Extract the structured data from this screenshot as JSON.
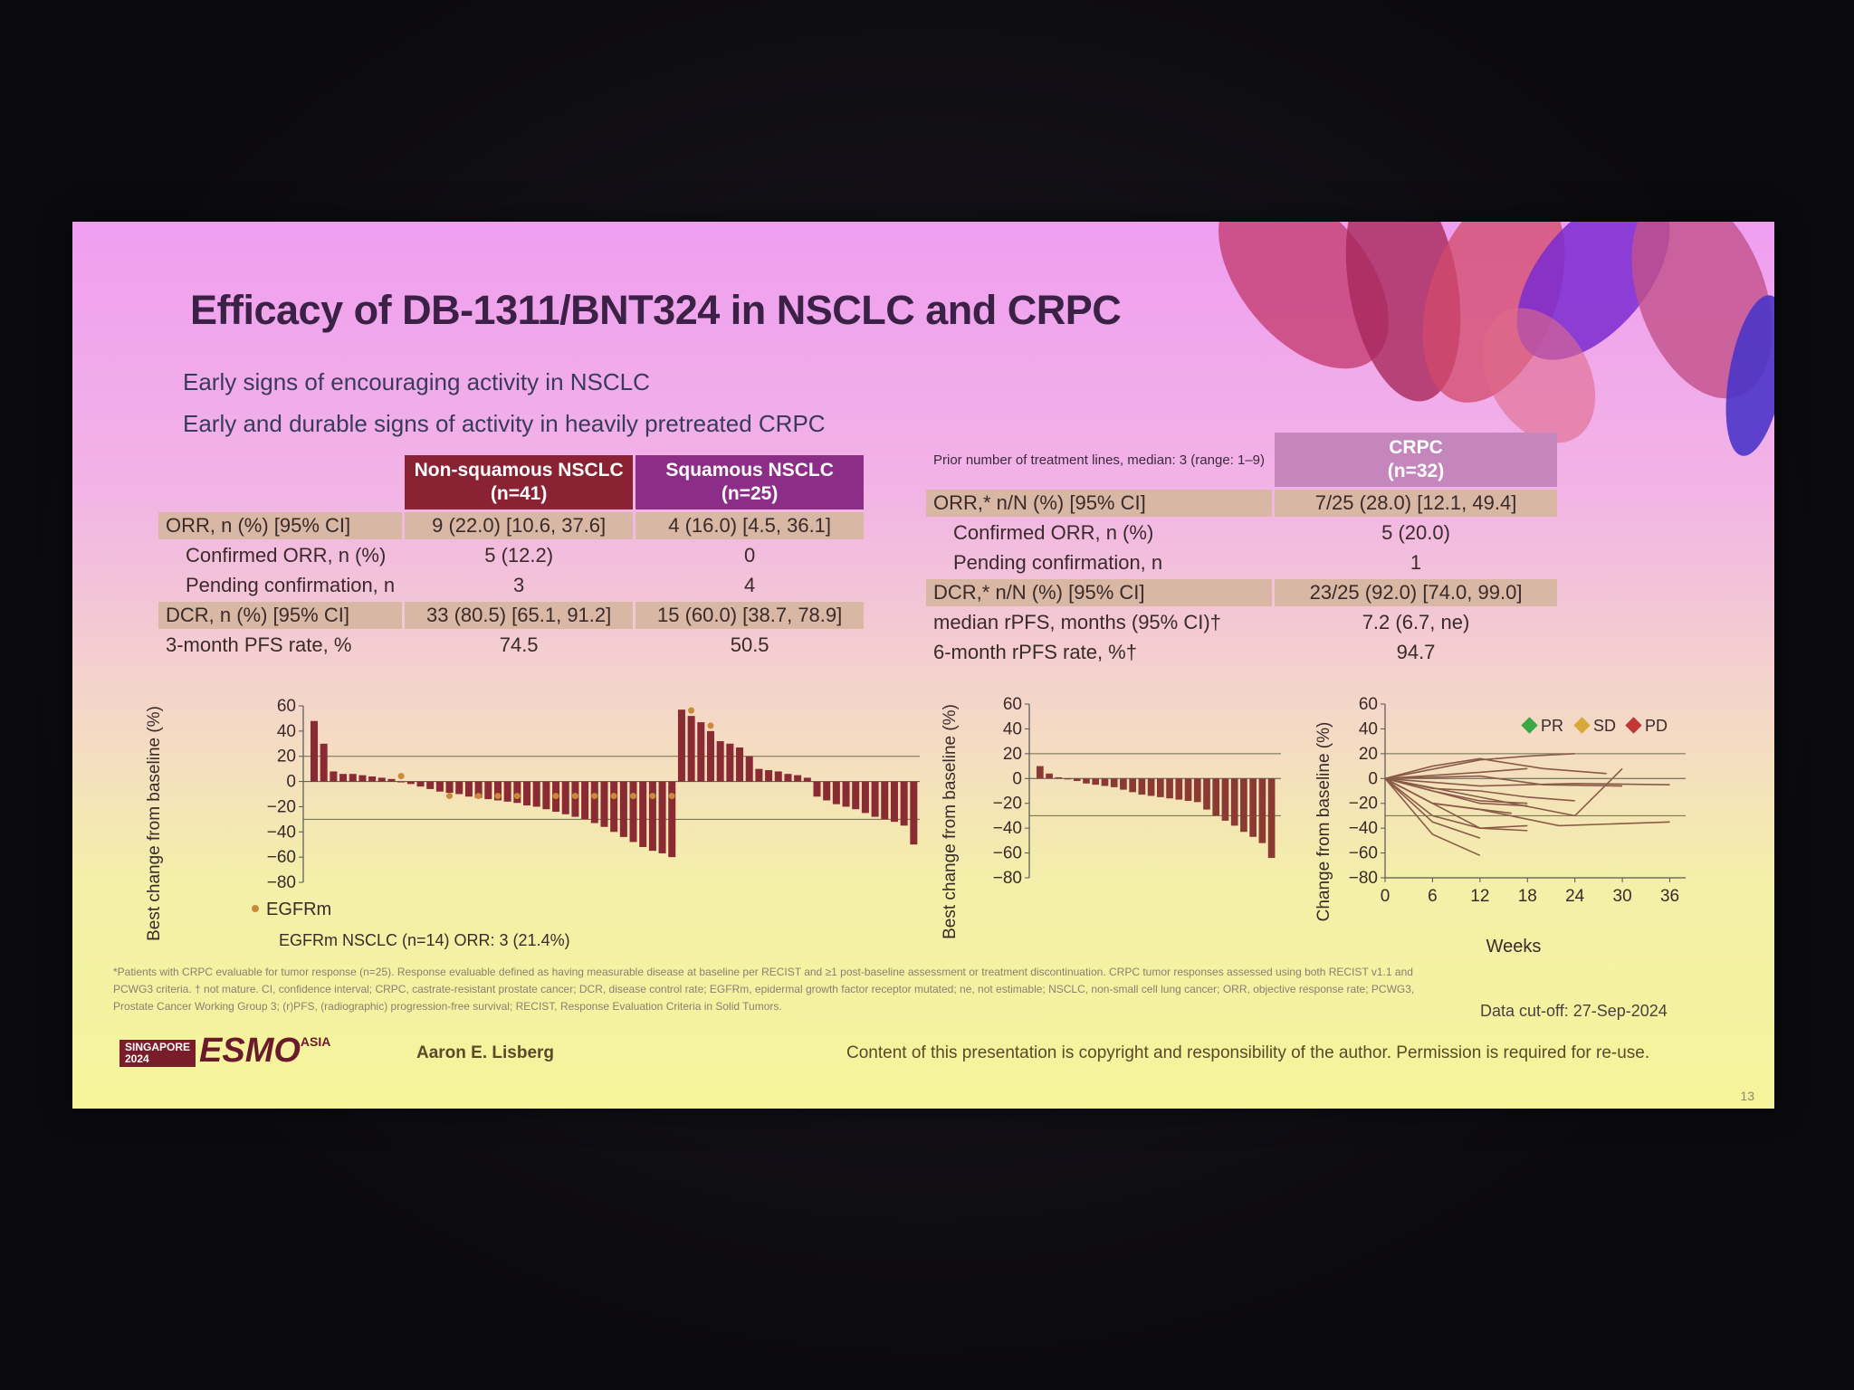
{
  "title": "Efficacy of DB-1311/BNT324 in NSCLC and CRPC",
  "bullets": [
    "Early signs of encouraging activity in NSCLC",
    "Early and durable signs of activity in heavily pretreated CRPC"
  ],
  "left_table": {
    "headers": [
      "Non-squamous NSCLC",
      "(n=41)",
      "Squamous NSCLC",
      "(n=25)"
    ],
    "rows": [
      {
        "label": "ORR, n (%) [95% CI]",
        "ns": "9 (22.0) [10.6, 37.6]",
        "sq": "4 (16.0) [4.5, 36.1]"
      },
      {
        "label": "Confirmed ORR, n (%)",
        "ns": "5 (12.2)",
        "sq": "0"
      },
      {
        "label": "Pending confirmation, n",
        "ns": "3",
        "sq": "4"
      },
      {
        "label": "DCR, n (%) [95% CI]",
        "ns": "33 (80.5) [65.1, 91.2]",
        "sq": "15 (60.0) [38.7, 78.9]"
      },
      {
        "label": "3-month PFS rate, %",
        "ns": "74.5",
        "sq": "50.5"
      }
    ]
  },
  "right_table": {
    "prior_lines": "Prior number of treatment lines, median: 3 (range: 1–9)",
    "headers": [
      "CRPC",
      "(n=32)"
    ],
    "rows": [
      {
        "label": "ORR,* n/N (%) [95% CI]",
        "val": "7/25 (28.0) [12.1, 49.4]"
      },
      {
        "label": "Confirmed ORR, n (%)",
        "val": "5 (20.0)"
      },
      {
        "label": "Pending confirmation, n",
        "val": "1"
      },
      {
        "label": "DCR,* n/N (%) [95% CI]",
        "val": "23/25 (92.0) [74.0, 99.0]"
      },
      {
        "label": "median rPFS, months (95% CI)†",
        "val": "7.2 (6.7, ne)"
      },
      {
        "label": "6-month rPFS rate, %†",
        "val": "94.7"
      }
    ]
  },
  "nsclc_chart": {
    "ylabel": "Best change from baseline (%)",
    "legend": "EGFRm",
    "caption": "EGFRm NSCLC (n=14) ORR: 3 (21.4%)"
  },
  "crpc_chart": {
    "ylabel": "Best change from baseline (%)"
  },
  "spider_chart": {
    "ylabel": "Change from baseline (%)",
    "xlabel": "Weeks",
    "legend": [
      "PR",
      "SD",
      "PD"
    ]
  },
  "chart_data": [
    {
      "type": "bar",
      "name_hint": "NSCLC waterfall",
      "ylim": [
        -80,
        60
      ],
      "yticks": [
        "60",
        "40",
        "20",
        "0",
        "−20",
        "−40",
        "−60",
        "−80"
      ],
      "reference_lines": [
        20,
        -30
      ],
      "values": [
        48,
        30,
        8,
        6,
        6,
        5,
        4,
        3,
        2,
        0,
        -2,
        -4,
        -6,
        -8,
        -9,
        -10,
        -12,
        -13,
        -14,
        -15,
        -16,
        -17,
        -19,
        -20,
        -22,
        -24,
        -26,
        -28,
        -30,
        -33,
        -36,
        -40,
        -44,
        -48,
        -52,
        -55,
        -57,
        -60,
        57,
        52,
        47,
        40,
        32,
        30,
        27,
        20,
        10,
        9,
        8,
        6,
        5,
        3,
        -12,
        -15,
        -18,
        -20,
        -22,
        -25,
        -28,
        -30,
        -32,
        -35,
        -50
      ],
      "egfrm_markers": [
        9,
        14,
        17,
        19,
        21,
        25,
        27,
        29,
        31,
        33,
        35,
        37,
        39,
        41
      ]
    },
    {
      "type": "bar",
      "name_hint": "CRPC waterfall",
      "ylim": [
        -80,
        60
      ],
      "yticks": [
        "60",
        "40",
        "20",
        "0",
        "−20",
        "−40",
        "−60",
        "−80"
      ],
      "reference_lines": [
        20,
        -30
      ],
      "values": [
        10,
        4,
        1,
        0,
        -2,
        -4,
        -5,
        -6,
        -7,
        -9,
        -11,
        -13,
        -14,
        -15,
        -16,
        -17,
        -18,
        -19,
        -25,
        -30,
        -34,
        -38,
        -43,
        -47,
        -52,
        -64
      ]
    },
    {
      "type": "line",
      "name_hint": "CRPC spider plot",
      "ylim": [
        -80,
        60
      ],
      "xlim": [
        0,
        38
      ],
      "yticks": [
        "60",
        "40",
        "20",
        "0",
        "−20",
        "−40",
        "−60",
        "−80"
      ],
      "xticks": [
        "0",
        "6",
        "12",
        "18",
        "24",
        "30",
        "36"
      ],
      "reference_lines": [
        20,
        -30
      ],
      "series": [
        {
          "x": [
            0,
            12,
            18,
            24
          ],
          "y": [
            0,
            15,
            18,
            20
          ]
        },
        {
          "x": [
            0,
            6,
            12,
            20,
            28
          ],
          "y": [
            0,
            10,
            16,
            8,
            4
          ]
        },
        {
          "x": [
            0,
            12,
            18
          ],
          "y": [
            0,
            5,
            8
          ]
        },
        {
          "x": [
            0,
            12,
            20,
            30
          ],
          "y": [
            0,
            2,
            -5,
            -6
          ]
        },
        {
          "x": [
            0,
            6,
            12,
            18,
            24
          ],
          "y": [
            0,
            -8,
            -10,
            -15,
            -18
          ]
        },
        {
          "x": [
            0,
            12,
            24,
            30
          ],
          "y": [
            0,
            -15,
            -30,
            8
          ]
        },
        {
          "x": [
            0,
            6,
            12,
            22,
            36
          ],
          "y": [
            0,
            -20,
            -25,
            -38,
            -35
          ]
        },
        {
          "x": [
            0,
            6,
            12,
            18
          ],
          "y": [
            0,
            -30,
            -40,
            -38
          ]
        },
        {
          "x": [
            0,
            6,
            12,
            18
          ],
          "y": [
            0,
            -20,
            -40,
            -42
          ]
        },
        {
          "x": [
            0,
            6,
            12
          ],
          "y": [
            0,
            -35,
            -48
          ]
        },
        {
          "x": [
            0,
            6,
            12
          ],
          "y": [
            0,
            -45,
            -62
          ]
        },
        {
          "x": [
            0,
            6,
            16
          ],
          "y": [
            0,
            -20,
            -28
          ]
        },
        {
          "x": [
            0,
            12,
            18
          ],
          "y": [
            0,
            -20,
            -22
          ]
        },
        {
          "x": [
            0,
            6,
            12,
            18
          ],
          "y": [
            0,
            -10,
            -18,
            -20
          ]
        },
        {
          "x": [
            0,
            12,
            24,
            36
          ],
          "y": [
            0,
            -6,
            -4,
            -5
          ]
        }
      ]
    }
  ],
  "footnote": "*Patients with CRPC evaluable for tumor response (n=25). Response evaluable defined as having measurable disease at baseline per RECIST and ≥1 post-baseline assessment or treatment discontinuation. CRPC tumor responses assessed using both RECIST v1.1 and PCWG3 criteria. † not mature. CI, confidence interval; CRPC, castrate-resistant prostate cancer; DCR, disease control rate; EGFRm, epidermal growth factor receptor mutated; ne, not estimable; NSCLC, non-small cell lung cancer; ORR, objective response rate; PCWG3, Prostate Cancer Working Group 3; (r)PFS, (radiographic) progression-free survival; RECIST, Response Evaluation Criteria in Solid Tumors.",
  "data_cutoff": "Data cut-off: 27-Sep-2024",
  "author": "Aaron E. Lisberg",
  "copyright": "Content of this presentation is copyright and responsibility of the author. Permission is required for re-use.",
  "page_number": "13",
  "logo": {
    "city": "SINGAPORE",
    "year": "2024",
    "brand": "ESMO",
    "region": "ASIA"
  }
}
